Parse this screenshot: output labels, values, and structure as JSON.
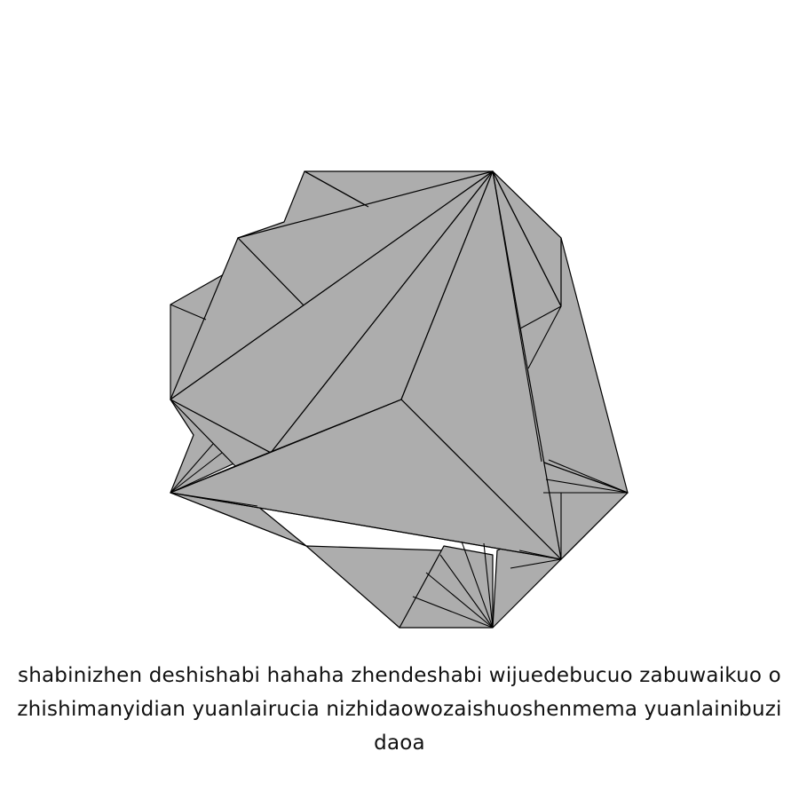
{
  "caption": {
    "line1": "shabinizhen deshishabi hahaha zhendeshabi wijuedebucuo zabuwaikuo o",
    "line2": "zhishimanyidian yuanlairucia nizhidaowozaishuoshenmema yuanlainibuzi",
    "line3": "daoa"
  },
  "colors": {
    "facet_fill": "#adadad",
    "edge": "#000000",
    "background": "#ffffff"
  }
}
